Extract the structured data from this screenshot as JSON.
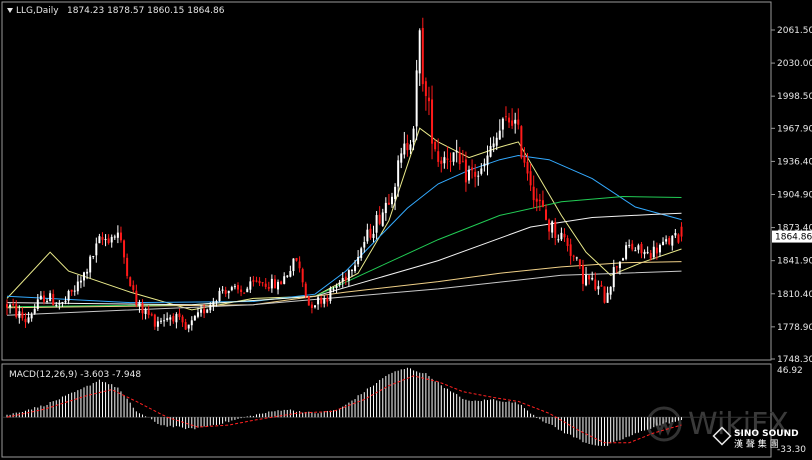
{
  "header": {
    "symbol": "LLG,Daily",
    "ohlc": "1874.23 1878.57 1860.15 1864.86"
  },
  "macd_header": "MACD(12,26,9) -3.603 -7.948",
  "watermark": {
    "brand": "WikiFX",
    "company": "SINO SOUND",
    "company_cn": "漢 聲 集 團"
  },
  "colors": {
    "background": "#000000",
    "frame": "#9a9a9a",
    "bull": "#ffffff",
    "bear": "#ff1a1a",
    "price_tag_bg": "#ffffff",
    "price_tag_text": "#000000",
    "macd_hist": "#ffffff",
    "macd_signal": "#ff2020"
  },
  "chart_data": [
    {
      "type": "candlestick",
      "title": "LLG,Daily",
      "current_price": "1864.86",
      "y_ticks": [
        "2061.50",
        "2030.00",
        "1998.50",
        "1967.90",
        "1936.40",
        "1904.90",
        "1873.40",
        "1841.90",
        "1810.40",
        "1778.90",
        "1748.30"
      ],
      "ylim": [
        1748.3,
        2076
      ],
      "anchors": [
        [
          0,
          1800,
          16
        ],
        [
          6,
          1785,
          14
        ],
        [
          12,
          1808,
          14
        ],
        [
          18,
          1800,
          14
        ],
        [
          24,
          1822,
          14
        ],
        [
          30,
          1860,
          16
        ],
        [
          36,
          1868,
          16
        ],
        [
          42,
          1800,
          14
        ],
        [
          48,
          1785,
          14
        ],
        [
          54,
          1790,
          14
        ],
        [
          58,
          1775,
          12
        ],
        [
          64,
          1795,
          12
        ],
        [
          70,
          1815,
          12
        ],
        [
          76,
          1812,
          12
        ],
        [
          82,
          1822,
          12
        ],
        [
          88,
          1818,
          12
        ],
        [
          94,
          1843,
          14
        ],
        [
          98,
          1800,
          12
        ],
        [
          104,
          1808,
          12
        ],
        [
          110,
          1828,
          14
        ],
        [
          116,
          1860,
          16
        ],
        [
          122,
          1890,
          20
        ],
        [
          126,
          1920,
          24
        ],
        [
          130,
          1955,
          28
        ],
        [
          132,
          1975,
          30
        ],
        [
          134,
          2050,
          40
        ],
        [
          136,
          1995,
          36
        ],
        [
          140,
          1940,
          30
        ],
        [
          144,
          1945,
          26
        ],
        [
          148,
          1925,
          26
        ],
        [
          154,
          1925,
          22
        ],
        [
          160,
          1965,
          26
        ],
        [
          164,
          1980,
          28
        ],
        [
          168,
          1940,
          26
        ],
        [
          172,
          1900,
          24
        ],
        [
          176,
          1875,
          22
        ],
        [
          182,
          1860,
          20
        ],
        [
          186,
          1830,
          20
        ],
        [
          190,
          1820,
          18
        ],
        [
          194,
          1808,
          18
        ],
        [
          198,
          1840,
          18
        ],
        [
          202,
          1855,
          14
        ],
        [
          208,
          1848,
          14
        ],
        [
          212,
          1855,
          14
        ],
        [
          216,
          1862,
          14
        ],
        [
          219,
          1864.86,
          14
        ]
      ],
      "moving_averages": [
        {
          "color": "#e9e98a",
          "points": [
            [
              0,
              1806
            ],
            [
              14,
              1850
            ],
            [
              20,
              1832
            ],
            [
              40,
              1812
            ],
            [
              60,
              1795
            ],
            [
              80,
              1806
            ],
            [
              100,
              1808
            ],
            [
              114,
              1830
            ],
            [
              124,
              1880
            ],
            [
              134,
              1968
            ],
            [
              140,
              1955
            ],
            [
              150,
              1940
            ],
            [
              160,
              1950
            ],
            [
              166,
              1955
            ],
            [
              172,
              1925
            ],
            [
              180,
              1885
            ],
            [
              188,
              1850
            ],
            [
              196,
              1828
            ],
            [
              206,
              1840
            ],
            [
              219,
              1853
            ]
          ]
        },
        {
          "color": "#33aaff",
          "points": [
            [
              0,
              1808
            ],
            [
              40,
              1802
            ],
            [
              80,
              1803
            ],
            [
              100,
              1810
            ],
            [
              110,
              1832
            ],
            [
              120,
              1862
            ],
            [
              130,
              1892
            ],
            [
              140,
              1915
            ],
            [
              150,
              1928
            ],
            [
              160,
              1938
            ],
            [
              166,
              1942
            ],
            [
              176,
              1938
            ],
            [
              190,
              1920
            ],
            [
              204,
              1893
            ],
            [
              219,
              1881
            ]
          ]
        },
        {
          "color": "#22cc55",
          "points": [
            [
              0,
              1798
            ],
            [
              60,
              1800
            ],
            [
              100,
              1808
            ],
            [
              120,
              1835
            ],
            [
              140,
              1862
            ],
            [
              160,
              1885
            ],
            [
              180,
              1898
            ],
            [
              200,
              1903
            ],
            [
              219,
              1902
            ]
          ]
        },
        {
          "color": "#f2f2f2",
          "points": [
            [
              0,
              1802
            ],
            [
              60,
              1800
            ],
            [
              100,
              1808
            ],
            [
              140,
              1842
            ],
            [
              170,
              1874
            ],
            [
              190,
              1883
            ],
            [
              210,
              1886
            ],
            [
              219,
              1887
            ]
          ]
        },
        {
          "color": "#f0d088",
          "points": [
            [
              0,
              1797
            ],
            [
              80,
              1800
            ],
            [
              110,
              1812
            ],
            [
              140,
              1822
            ],
            [
              160,
              1830
            ],
            [
              180,
              1836
            ],
            [
              200,
              1840
            ],
            [
              219,
              1841
            ]
          ]
        },
        {
          "color": "#c9c9c9",
          "points": [
            [
              0,
              1790
            ],
            [
              80,
              1800
            ],
            [
              140,
              1815
            ],
            [
              180,
              1828
            ],
            [
              219,
              1832
            ]
          ]
        }
      ]
    },
    {
      "type": "bar",
      "title": "MACD(12,26,9) -3.603 -7.948",
      "y_ticks": [
        "46.92",
        "-33.30"
      ],
      "ylim": [
        -33.3,
        46.92
      ],
      "histogram_anchors": [
        [
          0,
          2
        ],
        [
          12,
          12
        ],
        [
          24,
          28
        ],
        [
          30,
          38
        ],
        [
          36,
          30
        ],
        [
          42,
          6
        ],
        [
          50,
          -8
        ],
        [
          60,
          -12
        ],
        [
          70,
          -6
        ],
        [
          80,
          2
        ],
        [
          90,
          8
        ],
        [
          100,
          4
        ],
        [
          108,
          8
        ],
        [
          116,
          26
        ],
        [
          124,
          44
        ],
        [
          130,
          50
        ],
        [
          136,
          44
        ],
        [
          144,
          26
        ],
        [
          150,
          16
        ],
        [
          158,
          18
        ],
        [
          166,
          14
        ],
        [
          172,
          0
        ],
        [
          180,
          -14
        ],
        [
          188,
          -26
        ],
        [
          194,
          -30
        ],
        [
          200,
          -22
        ],
        [
          208,
          -12
        ],
        [
          214,
          -6
        ],
        [
          219,
          -3.6
        ]
      ],
      "signal_anchors": [
        [
          0,
          0
        ],
        [
          12,
          8
        ],
        [
          26,
          22
        ],
        [
          34,
          28
        ],
        [
          42,
          16
        ],
        [
          52,
          0
        ],
        [
          62,
          -10
        ],
        [
          72,
          -8
        ],
        [
          82,
          -2
        ],
        [
          94,
          4
        ],
        [
          106,
          6
        ],
        [
          116,
          18
        ],
        [
          124,
          32
        ],
        [
          132,
          42
        ],
        [
          140,
          36
        ],
        [
          148,
          26
        ],
        [
          158,
          20
        ],
        [
          166,
          16
        ],
        [
          176,
          4
        ],
        [
          186,
          -14
        ],
        [
          194,
          -26
        ],
        [
          202,
          -26
        ],
        [
          210,
          -16
        ],
        [
          219,
          -7.9
        ]
      ]
    }
  ]
}
